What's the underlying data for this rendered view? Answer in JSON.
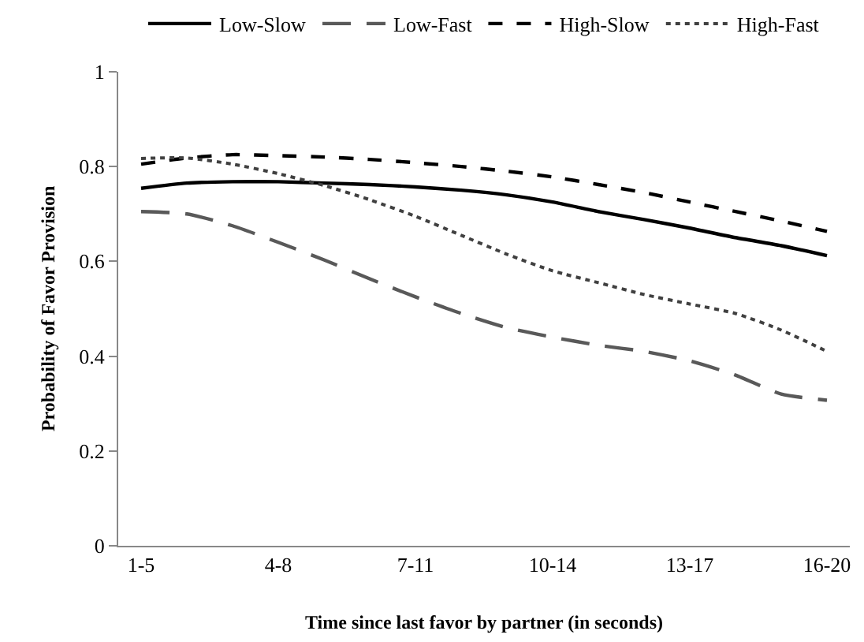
{
  "chart_data": {
    "type": "line",
    "ylabel": "Probability of Favor Provision",
    "xlabel": "Time since last favor by partner (in seconds)",
    "categories": [
      "1-5",
      null,
      null,
      "4-8",
      null,
      null,
      "7-11",
      null,
      null,
      "10-14",
      null,
      null,
      "13-17",
      null,
      null,
      "16-20"
    ],
    "ylim": [
      0,
      1
    ],
    "yticks": [
      0,
      0.2,
      0.4,
      0.6,
      0.8,
      1
    ],
    "legend": "top",
    "marker": "none",
    "series": [
      {
        "name": "Low-Slow",
        "color": "#000000",
        "line_style": "solid",
        "values": [
          0.754,
          0.765,
          0.768,
          0.768,
          0.765,
          0.762,
          0.757,
          0.75,
          0.74,
          0.725,
          0.705,
          0.688,
          0.67,
          0.65,
          0.633,
          0.612
        ]
      },
      {
        "name": "Low-Fast",
        "color": "#595959",
        "line_style": "dashed",
        "values": [
          0.705,
          0.7,
          0.675,
          0.64,
          0.603,
          0.563,
          0.525,
          0.49,
          0.46,
          0.44,
          0.423,
          0.41,
          0.39,
          0.36,
          0.32,
          0.307
        ]
      },
      {
        "name": "High-Slow",
        "color": "#000000",
        "line_style": "dashed",
        "values": [
          0.805,
          0.818,
          0.825,
          0.823,
          0.82,
          0.815,
          0.808,
          0.8,
          0.79,
          0.778,
          0.762,
          0.745,
          0.725,
          0.705,
          0.685,
          0.663
        ]
      },
      {
        "name": "High-Fast",
        "color": "#404040",
        "line_style": "dotted",
        "values": [
          0.817,
          0.818,
          0.805,
          0.785,
          0.76,
          0.73,
          0.695,
          0.655,
          0.615,
          0.58,
          0.555,
          0.53,
          0.51,
          0.49,
          0.455,
          0.41
        ]
      }
    ]
  }
}
